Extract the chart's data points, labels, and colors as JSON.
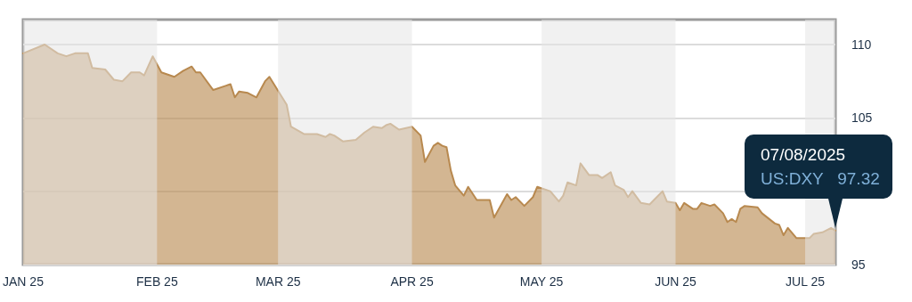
{
  "chart_data": {
    "type": "area",
    "x": [
      "2025-01-01",
      "2025-01-06",
      "2025-01-09",
      "2025-01-11",
      "2025-01-13",
      "2025-01-16",
      "2025-01-17",
      "2025-01-20",
      "2025-01-22",
      "2025-01-24",
      "2025-01-26",
      "2025-01-28",
      "2025-01-29",
      "2025-01-31",
      "2025-02-02",
      "2025-02-05",
      "2025-02-07",
      "2025-02-09",
      "2025-02-10",
      "2025-02-11",
      "2025-02-14",
      "2025-02-17",
      "2025-02-18",
      "2025-02-19",
      "2025-02-20",
      "2025-02-22",
      "2025-02-24",
      "2025-02-26",
      "2025-02-27",
      "2025-03-03",
      "2025-03-04",
      "2025-03-07",
      "2025-03-10",
      "2025-03-12",
      "2025-03-13",
      "2025-03-14",
      "2025-03-16",
      "2025-03-19",
      "2025-03-21",
      "2025-03-23",
      "2025-03-25",
      "2025-03-26",
      "2025-03-27",
      "2025-03-29",
      "2025-04-01",
      "2025-04-03",
      "2025-04-04",
      "2025-04-06",
      "2025-04-07",
      "2025-04-08",
      "2025-04-09",
      "2025-04-10",
      "2025-04-11",
      "2025-04-13",
      "2025-04-14",
      "2025-04-16",
      "2025-04-19",
      "2025-04-20",
      "2025-04-23",
      "2025-04-24",
      "2025-04-25",
      "2025-04-27",
      "2025-04-29",
      "2025-04-30",
      "2025-05-03",
      "2025-05-05",
      "2025-05-06",
      "2025-05-07",
      "2025-05-09",
      "2025-05-10",
      "2025-05-12",
      "2025-05-14",
      "2025-05-15",
      "2025-05-17",
      "2025-05-18",
      "2025-05-20",
      "2025-05-21",
      "2025-05-22",
      "2025-05-24",
      "2025-05-26",
      "2025-05-27",
      "2025-05-29",
      "2025-05-30",
      "2025-06-01",
      "2025-06-02",
      "2025-06-03",
      "2025-06-05",
      "2025-06-06",
      "2025-06-07",
      "2025-06-09",
      "2025-06-10",
      "2025-06-12",
      "2025-06-13",
      "2025-06-14",
      "2025-06-15",
      "2025-06-16",
      "2025-06-17",
      "2025-06-20",
      "2025-06-21",
      "2025-06-24",
      "2025-06-25",
      "2025-06-26",
      "2025-06-27",
      "2025-06-29",
      "2025-07-01",
      "2025-07-02",
      "2025-07-03",
      "2025-07-05",
      "2025-07-07",
      "2025-07-08"
    ],
    "series": [
      {
        "color": "#b8894f",
        "values": [
          109.4,
          110.0,
          109.4,
          109.2,
          109.4,
          109.4,
          108.4,
          108.3,
          107.6,
          107.5,
          108.1,
          108.1,
          107.9,
          109.2,
          108.1,
          107.8,
          108.2,
          108.5,
          108.1,
          108.1,
          106.9,
          107.2,
          107.3,
          106.4,
          106.8,
          106.7,
          106.4,
          107.5,
          107.8,
          105.9,
          104.4,
          103.9,
          103.9,
          103.7,
          103.9,
          103.8,
          103.4,
          103.5,
          104.0,
          104.4,
          104.3,
          104.5,
          104.6,
          104.2,
          104.4,
          103.8,
          102.0,
          103.1,
          103.3,
          103.1,
          103.0,
          101.4,
          100.4,
          99.7,
          100.3,
          99.4,
          99.4,
          98.2,
          99.8,
          99.4,
          99.6,
          99.0,
          99.6,
          100.3,
          100.0,
          99.3,
          99.7,
          100.6,
          100.4,
          101.9,
          101.1,
          101.1,
          100.9,
          101.3,
          100.4,
          100.1,
          99.6,
          100.0,
          99.2,
          99.1,
          99.4,
          100.0,
          99.3,
          99.2,
          98.7,
          99.2,
          98.8,
          98.8,
          99.2,
          99.0,
          99.1,
          98.5,
          97.9,
          98.1,
          97.9,
          98.8,
          99.0,
          98.9,
          98.5,
          97.8,
          97.7,
          97.0,
          97.5,
          96.8,
          96.8,
          96.8,
          97.1,
          97.2,
          97.5,
          97.32
        ]
      }
    ],
    "xlim": [
      "2025-01-01",
      "2025-07-08"
    ],
    "xticks": [
      {
        "value": "2025-01-01",
        "label": "JAN 25"
      },
      {
        "value": "2025-02-01",
        "label": "FEB 25"
      },
      {
        "value": "2025-03-01",
        "label": "MAR 25"
      },
      {
        "value": "2025-04-01",
        "label": "APR 25"
      },
      {
        "value": "2025-05-01",
        "label": "MAY 25"
      },
      {
        "value": "2025-06-01",
        "label": "JUN 25"
      },
      {
        "value": "2025-07-01",
        "label": "JUL 25"
      }
    ],
    "ylim": [
      95,
      111.7
    ],
    "yticks": [
      95,
      {
        "value": 100,
        "label": null
      },
      105,
      110
    ],
    "grid": "y",
    "bands": [
      {
        "axis": "x",
        "from": "2025-01-01",
        "to": "2025-02-01",
        "color": "#e6e6e6"
      },
      {
        "axis": "x",
        "from": "2025-03-01",
        "to": "2025-04-01",
        "color": "#e6e6e6"
      },
      {
        "axis": "x",
        "from": "2025-05-01",
        "to": "2025-06-01",
        "color": "#e6e6e6"
      },
      {
        "axis": "x",
        "from": "2025-07-01",
        "to": "2025-07-08",
        "color": "#e6e6e6"
      }
    ],
    "annotations": [
      "07/08/2025",
      {
        "text": "US:DXY   97.32",
        "x": "2025-07-08",
        "y": 97.32
      }
    ]
  }
}
